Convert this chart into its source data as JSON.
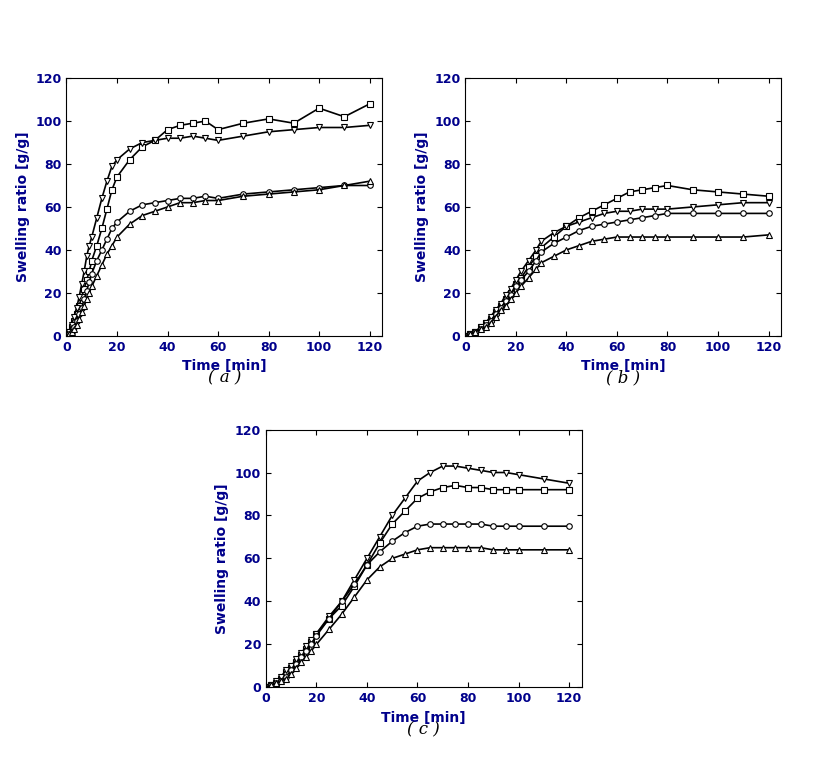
{
  "panels": [
    "( a )",
    "( b )",
    "( c )"
  ],
  "xlabel": "Time [min]",
  "ylabel": "Swelling ratio [g/g]",
  "xlim": [
    0,
    125
  ],
  "ylim": [
    0,
    120
  ],
  "xticks": [
    0,
    20,
    40,
    60,
    80,
    100,
    120
  ],
  "yticks": [
    0,
    20,
    40,
    60,
    80,
    100,
    120
  ],
  "panel_a": {
    "square": {
      "x": [
        0,
        1,
        2,
        3,
        4,
        5,
        6,
        7,
        8,
        9,
        10,
        12,
        14,
        16,
        18,
        20,
        25,
        30,
        35,
        40,
        45,
        50,
        55,
        60,
        70,
        80,
        90,
        100,
        110,
        120
      ],
      "y": [
        0,
        2,
        4,
        7,
        10,
        14,
        18,
        22,
        26,
        30,
        35,
        42,
        50,
        59,
        68,
        74,
        82,
        88,
        91,
        96,
        98,
        99,
        100,
        96,
        99,
        101,
        99,
        106,
        102,
        108
      ]
    },
    "tri_down": {
      "x": [
        0,
        1,
        2,
        3,
        4,
        5,
        6,
        7,
        8,
        9,
        10,
        12,
        14,
        16,
        18,
        20,
        25,
        30,
        35,
        40,
        45,
        50,
        55,
        60,
        70,
        80,
        90,
        100,
        110,
        120
      ],
      "y": [
        0,
        2,
        5,
        9,
        13,
        18,
        24,
        30,
        37,
        42,
        46,
        55,
        64,
        72,
        79,
        82,
        87,
        90,
        91,
        92,
        92,
        93,
        92,
        91,
        93,
        95,
        96,
        97,
        97,
        98
      ]
    },
    "circle": {
      "x": [
        0,
        1,
        2,
        3,
        4,
        5,
        6,
        7,
        8,
        9,
        10,
        12,
        14,
        16,
        18,
        20,
        25,
        30,
        35,
        40,
        45,
        50,
        55,
        60,
        70,
        80,
        90,
        100,
        110,
        120
      ],
      "y": [
        0,
        1,
        2,
        4,
        7,
        10,
        13,
        17,
        21,
        25,
        29,
        35,
        40,
        45,
        50,
        53,
        58,
        61,
        62,
        63,
        64,
        64,
        65,
        64,
        66,
        67,
        68,
        69,
        70,
        70
      ]
    },
    "tri_up": {
      "x": [
        0,
        1,
        2,
        3,
        4,
        5,
        6,
        7,
        8,
        9,
        10,
        12,
        14,
        16,
        18,
        20,
        25,
        30,
        35,
        40,
        45,
        50,
        55,
        60,
        70,
        80,
        90,
        100,
        110,
        120
      ],
      "y": [
        0,
        1,
        2,
        3,
        5,
        8,
        11,
        14,
        17,
        20,
        23,
        28,
        33,
        38,
        42,
        46,
        52,
        56,
        58,
        60,
        62,
        62,
        63,
        63,
        65,
        66,
        67,
        68,
        70,
        72
      ]
    }
  },
  "panel_b": {
    "square": {
      "x": [
        0,
        2,
        4,
        6,
        8,
        10,
        12,
        14,
        16,
        18,
        20,
        22,
        25,
        28,
        30,
        35,
        40,
        45,
        50,
        55,
        60,
        65,
        70,
        75,
        80,
        90,
        100,
        110,
        120
      ],
      "y": [
        0,
        1,
        2,
        4,
        6,
        8,
        11,
        14,
        17,
        20,
        24,
        27,
        32,
        37,
        41,
        46,
        51,
        55,
        58,
        61,
        64,
        67,
        68,
        69,
        70,
        68,
        67,
        66,
        65
      ]
    },
    "tri_down": {
      "x": [
        0,
        2,
        4,
        6,
        8,
        10,
        12,
        14,
        16,
        18,
        20,
        22,
        25,
        28,
        30,
        35,
        40,
        45,
        50,
        55,
        60,
        65,
        70,
        75,
        80,
        90,
        100,
        110,
        120
      ],
      "y": [
        0,
        1,
        2,
        4,
        6,
        9,
        12,
        15,
        19,
        22,
        26,
        30,
        35,
        40,
        44,
        48,
        51,
        53,
        55,
        57,
        58,
        58,
        59,
        59,
        59,
        60,
        61,
        62,
        62
      ]
    },
    "circle": {
      "x": [
        0,
        2,
        4,
        6,
        8,
        10,
        12,
        14,
        16,
        18,
        20,
        22,
        25,
        28,
        30,
        35,
        40,
        45,
        50,
        55,
        60,
        65,
        70,
        75,
        80,
        90,
        100,
        110,
        120
      ],
      "y": [
        0,
        1,
        2,
        3,
        5,
        7,
        10,
        13,
        16,
        19,
        23,
        26,
        30,
        35,
        39,
        43,
        46,
        49,
        51,
        52,
        53,
        54,
        55,
        56,
        57,
        57,
        57,
        57,
        57
      ]
    },
    "tri_up": {
      "x": [
        0,
        2,
        4,
        6,
        8,
        10,
        12,
        14,
        16,
        18,
        20,
        22,
        25,
        28,
        30,
        35,
        40,
        45,
        50,
        55,
        60,
        65,
        70,
        75,
        80,
        90,
        100,
        110,
        120
      ],
      "y": [
        0,
        1,
        2,
        3,
        4,
        6,
        9,
        12,
        14,
        17,
        20,
        23,
        27,
        31,
        34,
        37,
        40,
        42,
        44,
        45,
        46,
        46,
        46,
        46,
        46,
        46,
        46,
        46,
        47
      ]
    }
  },
  "panel_c": {
    "tri_down": {
      "x": [
        0,
        2,
        4,
        6,
        8,
        10,
        12,
        14,
        16,
        18,
        20,
        25,
        30,
        35,
        40,
        45,
        50,
        55,
        60,
        65,
        70,
        75,
        80,
        85,
        90,
        95,
        100,
        110,
        120
      ],
      "y": [
        0,
        1,
        3,
        5,
        8,
        10,
        13,
        16,
        19,
        22,
        25,
        33,
        40,
        50,
        60,
        70,
        80,
        88,
        96,
        100,
        103,
        103,
        102,
        101,
        100,
        100,
        99,
        97,
        95
      ]
    },
    "square": {
      "x": [
        0,
        2,
        4,
        6,
        8,
        10,
        12,
        14,
        16,
        18,
        20,
        25,
        30,
        35,
        40,
        45,
        50,
        55,
        60,
        65,
        70,
        75,
        80,
        85,
        90,
        95,
        100,
        110,
        120
      ],
      "y": [
        0,
        1,
        2,
        4,
        7,
        9,
        12,
        15,
        18,
        21,
        25,
        32,
        38,
        47,
        57,
        67,
        76,
        82,
        88,
        91,
        93,
        94,
        93,
        93,
        92,
        92,
        92,
        92,
        92
      ]
    },
    "circle": {
      "x": [
        0,
        2,
        4,
        6,
        8,
        10,
        12,
        14,
        16,
        18,
        20,
        25,
        30,
        35,
        40,
        45,
        50,
        55,
        60,
        65,
        70,
        75,
        80,
        85,
        90,
        95,
        100,
        110,
        120
      ],
      "y": [
        0,
        1,
        2,
        3,
        5,
        8,
        11,
        14,
        17,
        20,
        24,
        32,
        40,
        48,
        57,
        63,
        68,
        72,
        75,
        76,
        76,
        76,
        76,
        76,
        75,
        75,
        75,
        75,
        75
      ]
    },
    "tri_up": {
      "x": [
        0,
        2,
        4,
        6,
        8,
        10,
        12,
        14,
        16,
        18,
        20,
        25,
        30,
        35,
        40,
        45,
        50,
        55,
        60,
        65,
        70,
        75,
        80,
        85,
        90,
        95,
        100,
        110,
        120
      ],
      "y": [
        0,
        1,
        2,
        3,
        4,
        6,
        9,
        12,
        14,
        17,
        20,
        27,
        34,
        42,
        50,
        56,
        60,
        62,
        64,
        65,
        65,
        65,
        65,
        65,
        64,
        64,
        64,
        64,
        64
      ]
    }
  },
  "line_color": "#000000",
  "marker_edge_color": "#000000",
  "label_color": "#00008B",
  "tick_color": "#00008B",
  "font_size_axis": 9,
  "font_size_label": 10,
  "font_size_panel": 12,
  "line_width": 1.2,
  "marker_size": 4
}
